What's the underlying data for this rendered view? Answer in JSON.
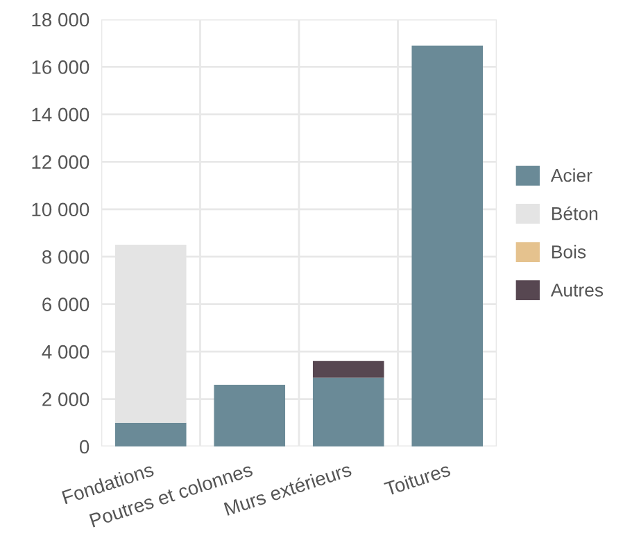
{
  "chart_data": {
    "type": "bar",
    "stacked": true,
    "categories": [
      "Fondations",
      "Poutres et colonnes",
      "Murs extérieurs",
      "Toitures"
    ],
    "series": [
      {
        "name": "Acier",
        "color": "#6a8a97",
        "values": [
          1000,
          2600,
          2900,
          16900
        ]
      },
      {
        "name": "Béton",
        "color": "#e4e4e4",
        "values": [
          7500,
          0,
          0,
          0
        ]
      },
      {
        "name": "Bois",
        "color": "#e5c28e",
        "values": [
          0,
          0,
          0,
          0
        ]
      },
      {
        "name": "Autres",
        "color": "#574751",
        "values": [
          0,
          0,
          700,
          0
        ]
      }
    ],
    "ylim": [
      0,
      18000
    ],
    "yticks": [
      0,
      {
        "value": 2000,
        "label": "2 000"
      },
      {
        "value": 4000,
        "label": "4 000"
      },
      {
        "value": 6000,
        "label": "6 000"
      },
      {
        "value": 8000,
        "label": "8 000"
      },
      {
        "value": 10000,
        "label": "10 000"
      },
      {
        "value": 12000,
        "label": "12 000"
      },
      {
        "value": 14000,
        "label": "14 000"
      },
      {
        "value": 16000,
        "label": "16 000"
      },
      {
        "value": 18000,
        "label": "18 000"
      }
    ],
    "grid": true,
    "legend": "right"
  }
}
